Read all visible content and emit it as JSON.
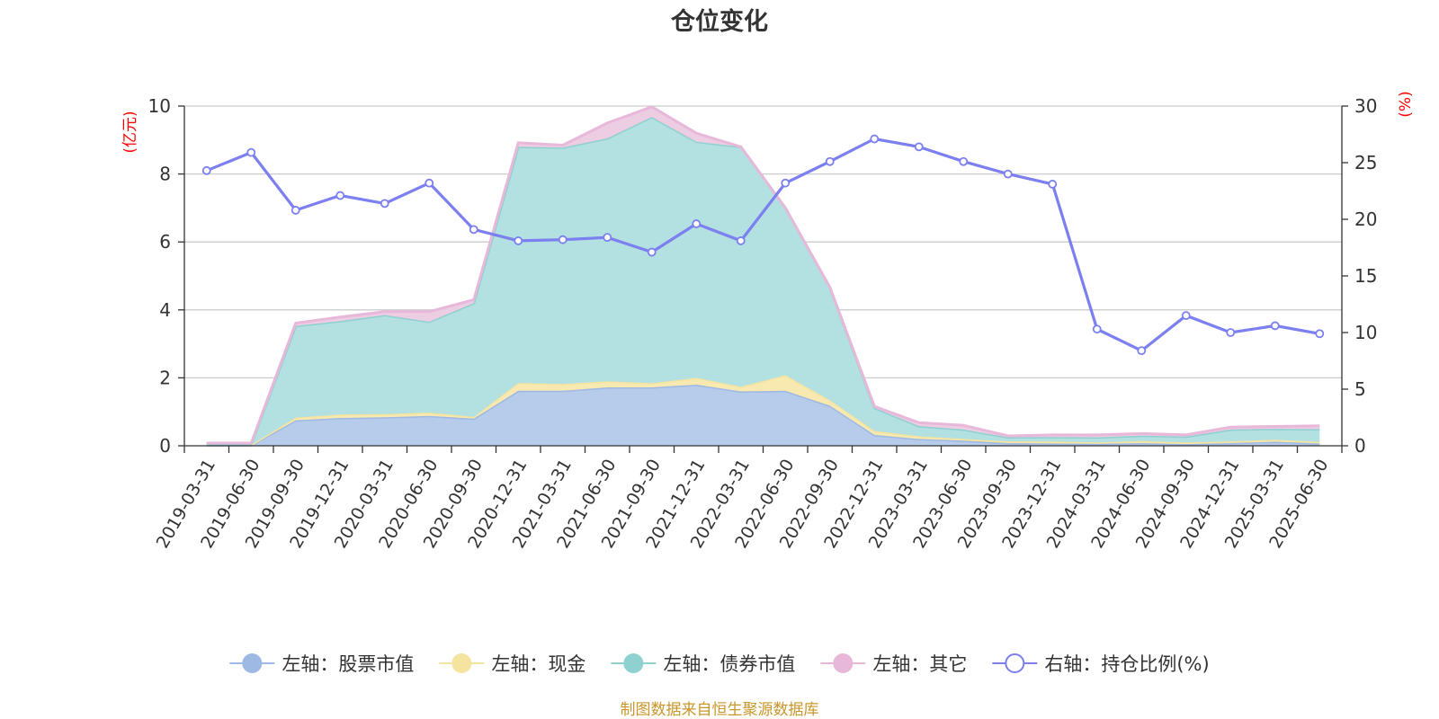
{
  "chart_data": {
    "type": "area",
    "title": "仓位变化",
    "left_axis": {
      "unit_label": "(亿元)",
      "ylim": [
        0,
        10
      ],
      "ticks": [
        0,
        2,
        4,
        6,
        8,
        10
      ],
      "color": "#ff0000"
    },
    "right_axis": {
      "unit_label": "(%)",
      "ylim": [
        0,
        30
      ],
      "ticks": [
        0,
        5,
        10,
        15,
        20,
        25,
        30
      ],
      "color": "#ff0000"
    },
    "categories": [
      "2019-03-31",
      "2019-06-30",
      "2019-09-30",
      "2019-12-31",
      "2020-03-31",
      "2020-06-30",
      "2020-09-30",
      "2020-12-31",
      "2021-03-31",
      "2021-06-30",
      "2021-09-30",
      "2021-12-31",
      "2022-03-31",
      "2022-06-30",
      "2022-09-30",
      "2022-12-31",
      "2023-03-31",
      "2023-06-30",
      "2023-09-30",
      "2023-12-31",
      "2024-03-31",
      "2024-06-30",
      "2024-09-30",
      "2024-12-31",
      "2025-03-31",
      "2025-06-30"
    ],
    "stacked": true,
    "grid": true,
    "legend_position": "bottom",
    "series": [
      {
        "name": "左轴：股票市值",
        "axis": "left",
        "kind": "area",
        "color": "#9eb9e3",
        "fill": "#b7cbea",
        "values": [
          0.02,
          0.02,
          0.75,
          0.82,
          0.84,
          0.88,
          0.8,
          1.62,
          1.62,
          1.72,
          1.72,
          1.8,
          1.6,
          1.62,
          1.18,
          0.32,
          0.2,
          0.15,
          0.08,
          0.07,
          0.06,
          0.08,
          0.05,
          0.08,
          0.12,
          0.07
        ]
      },
      {
        "name": "左轴：现金",
        "axis": "left",
        "kind": "area",
        "color": "#f5e3a0",
        "fill": "#f7e9b0",
        "values": [
          0.01,
          0.01,
          0.08,
          0.1,
          0.09,
          0.1,
          0.05,
          0.23,
          0.2,
          0.18,
          0.12,
          0.2,
          0.14,
          0.46,
          0.16,
          0.12,
          0.08,
          0.05,
          0.05,
          0.06,
          0.04,
          0.06,
          0.05,
          0.05,
          0.06,
          0.04
        ]
      },
      {
        "name": "左轴：债券市值",
        "axis": "left",
        "kind": "area",
        "color": "#8fd0d0",
        "fill": "#b3e0e0",
        "values": [
          0.02,
          0.02,
          2.7,
          2.75,
          2.92,
          2.67,
          3.35,
          6.95,
          6.96,
          7.15,
          7.84,
          6.95,
          7.06,
          4.92,
          3.32,
          0.68,
          0.3,
          0.28,
          0.12,
          0.13,
          0.15,
          0.16,
          0.17,
          0.35,
          0.32,
          0.38
        ]
      },
      {
        "name": "左轴：其它",
        "axis": "left",
        "kind": "area",
        "color": "#e8b8da",
        "fill": "#eccde2",
        "values": [
          0.03,
          0.03,
          0.08,
          0.12,
          0.1,
          0.3,
          0.1,
          0.12,
          0.07,
          0.45,
          0.3,
          0.25,
          0.0,
          0.0,
          0.0,
          0.04,
          0.1,
          0.12,
          0.04,
          0.06,
          0.07,
          0.06,
          0.05,
          0.07,
          0.07,
          0.1
        ]
      },
      {
        "name": "右轴：持仓比例(%)",
        "axis": "right",
        "kind": "line",
        "color": "#7b7ff0",
        "values": [
          24.3,
          25.9,
          20.8,
          22.1,
          21.4,
          23.2,
          19.1,
          18.1,
          18.2,
          18.4,
          17.1,
          19.6,
          18.1,
          23.2,
          25.1,
          27.1,
          26.4,
          25.1,
          24.0,
          23.1,
          10.3,
          8.4,
          11.5,
          10.0,
          10.6,
          9.9
        ]
      }
    ]
  },
  "footer": {
    "source": "制图数据来自恒生聚源数据库"
  }
}
